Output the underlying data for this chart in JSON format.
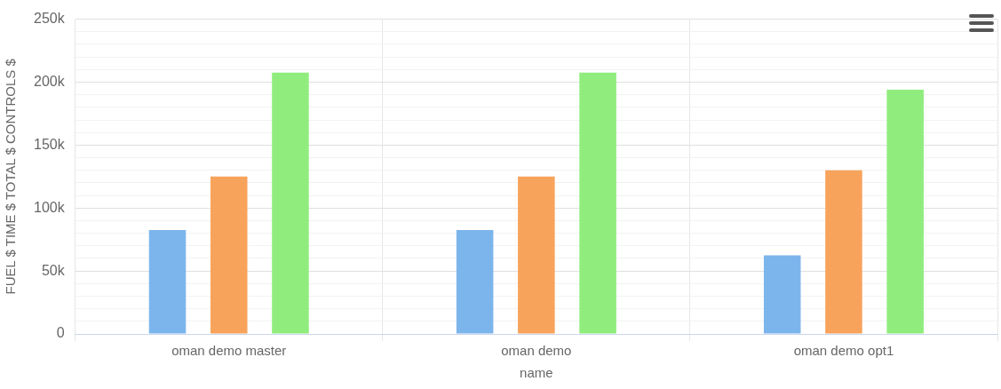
{
  "chart_data": {
    "type": "bar",
    "xlabel": "name",
    "ylabel": "FUEL $ TIME $ TOTAL $ CONTROLS $",
    "categories": [
      "oman demo master",
      "oman demo",
      "oman demo opt1"
    ],
    "series": [
      {
        "color": "#7cb5ec",
        "values": [
          82500,
          82500,
          62500
        ]
      },
      {
        "color": "#f7a35c",
        "values": [
          125000,
          125000,
          130000
        ]
      },
      {
        "color": "#90ed7d",
        "values": [
          207500,
          207500,
          194000
        ]
      }
    ],
    "ylim": [
      0,
      250000
    ],
    "yticks": [
      0,
      {
        "value": 10000,
        "label": null
      },
      {
        "value": 20000,
        "label": null
      },
      {
        "value": 30000,
        "label": null
      },
      {
        "value": 40000,
        "label": null
      },
      {
        "value": 50000,
        "label": "50k"
      },
      {
        "value": 60000,
        "label": null
      },
      {
        "value": 70000,
        "label": null
      },
      {
        "value": 80000,
        "label": null
      },
      {
        "value": 90000,
        "label": null
      },
      {
        "value": 100000,
        "label": "100k"
      },
      {
        "value": 110000,
        "label": null
      },
      {
        "value": 120000,
        "label": null
      },
      {
        "value": 130000,
        "label": null
      },
      {
        "value": 140000,
        "label": null
      },
      {
        "value": 150000,
        "label": "150k"
      },
      {
        "value": 160000,
        "label": null
      },
      {
        "value": 170000,
        "label": null
      },
      {
        "value": 180000,
        "label": null
      },
      {
        "value": 190000,
        "label": null
      },
      {
        "value": 200000,
        "label": "200k"
      },
      {
        "value": 210000,
        "label": null
      },
      {
        "value": 220000,
        "label": null
      },
      {
        "value": 230000,
        "label": null
      },
      {
        "value": 240000,
        "label": null
      },
      {
        "value": 250000,
        "label": "250k"
      }
    ],
    "grid": true,
    "legend": false
  }
}
